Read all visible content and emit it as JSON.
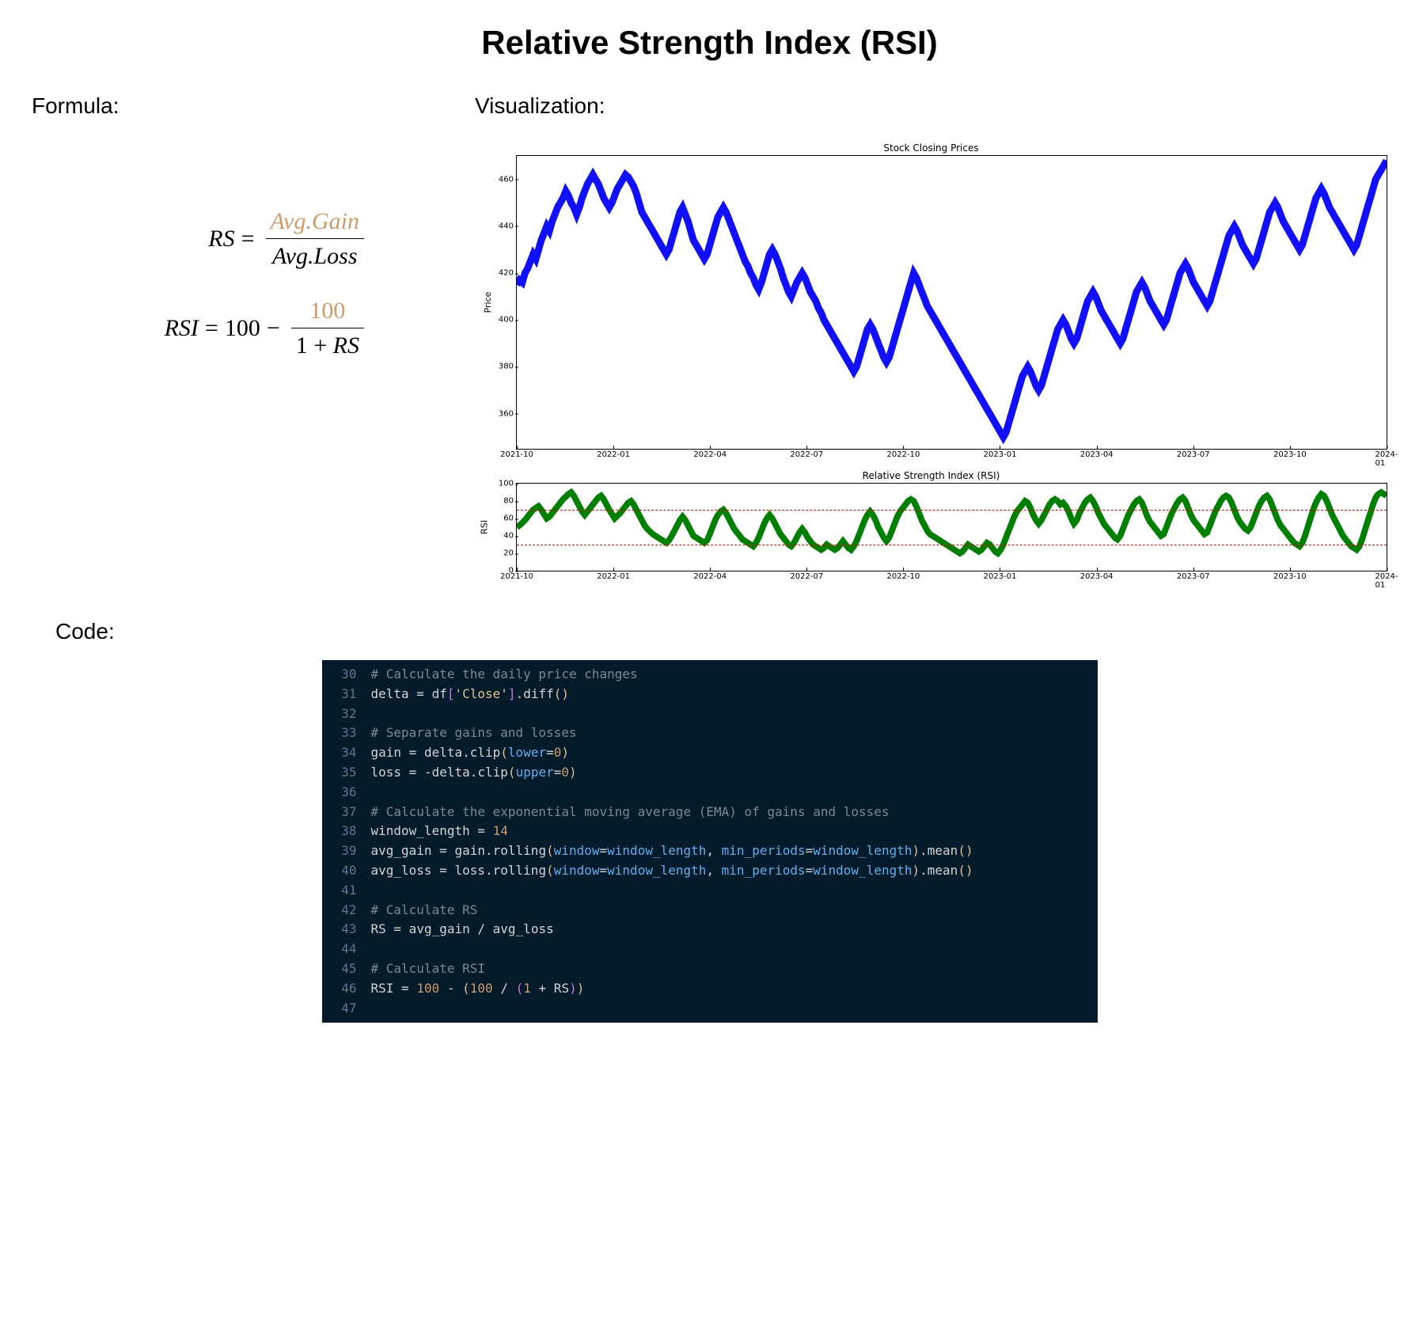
{
  "title": "Relative Strength Index (RSI)",
  "headings": {
    "formula": "Formula:",
    "visualization": "Visualization:",
    "code": "Code:"
  },
  "formula": {
    "rs_lhs": "RS",
    "rs_num": "Avg.Gain",
    "rs_den": "Avg.Loss",
    "rsi_lhs": "RSI",
    "rsi_base": "100",
    "rsi_minus": "−",
    "rsi_num": "100",
    "rsi_den_prefix": "1 + ",
    "rsi_den_var": "RS",
    "equals": "="
  },
  "price_chart": {
    "type": "line",
    "title": "Stock Closing Prices",
    "ylabel": "Price",
    "line_color": "#1010ff",
    "line_width": 1.5,
    "background_color": "#ffffff",
    "border_color": "#000000",
    "ylim": [
      345,
      470
    ],
    "yticks": [
      360,
      380,
      400,
      420,
      440,
      460
    ],
    "xlim": [
      0,
      837
    ],
    "xticks": [
      {
        "pos": 0,
        "label": "2021-10"
      },
      {
        "pos": 93,
        "label": "2022-01"
      },
      {
        "pos": 186,
        "label": "2022-04"
      },
      {
        "pos": 279,
        "label": "2022-07"
      },
      {
        "pos": 372,
        "label": "2022-10"
      },
      {
        "pos": 465,
        "label": "2023-01"
      },
      {
        "pos": 558,
        "label": "2023-04"
      },
      {
        "pos": 651,
        "label": "2023-07"
      },
      {
        "pos": 744,
        "label": "2023-10"
      },
      {
        "pos": 837,
        "label": "2024-01"
      }
    ],
    "data": [
      415,
      417,
      416,
      420,
      422,
      425,
      428,
      426,
      430,
      434,
      437,
      440,
      438,
      442,
      445,
      448,
      450,
      452,
      455,
      453,
      450,
      448,
      445,
      448,
      452,
      455,
      458,
      460,
      462,
      460,
      458,
      455,
      452,
      450,
      448,
      450,
      453,
      456,
      458,
      460,
      462,
      461,
      459,
      457,
      454,
      450,
      446,
      444,
      442,
      440,
      438,
      436,
      434,
      432,
      430,
      428,
      430,
      434,
      438,
      442,
      446,
      448,
      445,
      442,
      438,
      434,
      432,
      430,
      428,
      426,
      428,
      432,
      436,
      440,
      444,
      446,
      448,
      446,
      443,
      440,
      437,
      434,
      431,
      428,
      425,
      423,
      420,
      418,
      415,
      413,
      416,
      420,
      424,
      428,
      430,
      428,
      425,
      422,
      418,
      415,
      412,
      410,
      413,
      416,
      418,
      420,
      418,
      415,
      412,
      410,
      408,
      405,
      403,
      400,
      398,
      396,
      394,
      392,
      390,
      388,
      386,
      384,
      382,
      380,
      378,
      380,
      384,
      388,
      392,
      396,
      398,
      396,
      393,
      390,
      387,
      384,
      382,
      384,
      388,
      392,
      396,
      400,
      404,
      408,
      412,
      416,
      420,
      418,
      415,
      412,
      409,
      406,
      404,
      402,
      400,
      398,
      396,
      394,
      392,
      390,
      388,
      386,
      384,
      382,
      380,
      378,
      376,
      374,
      372,
      370,
      368,
      366,
      364,
      362,
      360,
      358,
      356,
      354,
      352,
      350,
      352,
      356,
      360,
      364,
      368,
      372,
      376,
      378,
      380,
      378,
      375,
      372,
      370,
      372,
      376,
      380,
      384,
      388,
      392,
      396,
      398,
      400,
      398,
      395,
      392,
      390,
      392,
      396,
      400,
      404,
      408,
      410,
      412,
      410,
      407,
      404,
      402,
      400,
      398,
      396,
      394,
      392,
      390,
      392,
      396,
      400,
      404,
      408,
      412,
      414,
      416,
      414,
      411,
      408,
      406,
      404,
      402,
      400,
      398,
      400,
      404,
      408,
      412,
      416,
      420,
      422,
      424,
      422,
      419,
      416,
      414,
      412,
      410,
      408,
      406,
      408,
      412,
      416,
      420,
      424,
      428,
      432,
      436,
      438,
      440,
      438,
      435,
      432,
      430,
      428,
      426,
      424,
      426,
      430,
      434,
      438,
      442,
      446,
      448,
      450,
      448,
      445,
      442,
      440,
      438,
      436,
      434,
      432,
      430,
      432,
      436,
      440,
      444,
      448,
      452,
      454,
      456,
      454,
      451,
      448,
      446,
      444,
      442,
      440,
      438,
      436,
      434,
      432,
      430,
      432,
      436,
      440,
      444,
      448,
      452,
      456,
      460,
      462,
      464,
      466,
      468
    ]
  },
  "rsi_chart": {
    "type": "line",
    "title": "Relative Strength Index (RSI)",
    "ylabel": "RSI",
    "line_color": "#008000",
    "line_width": 1.3,
    "threshold_color": "#ff0000",
    "thresholds": [
      30,
      70
    ],
    "background_color": "#ffffff",
    "border_color": "#000000",
    "ylim": [
      0,
      100
    ],
    "yticks": [
      0,
      20,
      40,
      60,
      80,
      100
    ],
    "xlim": [
      0,
      837
    ],
    "xticks": [
      {
        "pos": 0,
        "label": "2021-10"
      },
      {
        "pos": 93,
        "label": "2022-01"
      },
      {
        "pos": 186,
        "label": "2022-04"
      },
      {
        "pos": 279,
        "label": "2022-07"
      },
      {
        "pos": 372,
        "label": "2022-10"
      },
      {
        "pos": 465,
        "label": "2023-01"
      },
      {
        "pos": 558,
        "label": "2023-04"
      },
      {
        "pos": 651,
        "label": "2023-07"
      },
      {
        "pos": 744,
        "label": "2023-10"
      },
      {
        "pos": 837,
        "label": "2024-01"
      }
    ],
    "data": [
      50,
      52,
      55,
      58,
      62,
      66,
      70,
      72,
      74,
      70,
      65,
      60,
      62,
      66,
      70,
      74,
      78,
      82,
      85,
      88,
      90,
      86,
      80,
      74,
      68,
      64,
      68,
      72,
      76,
      80,
      84,
      86,
      82,
      76,
      70,
      65,
      60,
      63,
      66,
      70,
      74,
      78,
      80,
      76,
      70,
      64,
      58,
      52,
      48,
      45,
      42,
      40,
      38,
      36,
      34,
      32,
      35,
      40,
      46,
      52,
      58,
      62,
      58,
      52,
      46,
      40,
      38,
      36,
      34,
      32,
      35,
      42,
      50,
      58,
      64,
      68,
      70,
      66,
      60,
      54,
      48,
      44,
      40,
      36,
      34,
      32,
      30,
      28,
      32,
      38,
      46,
      54,
      60,
      64,
      60,
      54,
      48,
      42,
      38,
      34,
      30,
      28,
      32,
      38,
      44,
      48,
      44,
      38,
      34,
      30,
      28,
      26,
      24,
      26,
      30,
      28,
      26,
      24,
      26,
      30,
      34,
      30,
      26,
      24,
      28,
      34,
      42,
      50,
      58,
      64,
      68,
      64,
      58,
      50,
      44,
      38,
      34,
      38,
      46,
      54,
      62,
      68,
      72,
      76,
      80,
      82,
      80,
      74,
      66,
      58,
      52,
      46,
      42,
      40,
      38,
      36,
      34,
      32,
      30,
      28,
      26,
      24,
      22,
      20,
      22,
      26,
      30,
      28,
      26,
      24,
      22,
      24,
      28,
      32,
      30,
      26,
      22,
      20,
      24,
      30,
      38,
      46,
      54,
      62,
      68,
      72,
      76,
      80,
      78,
      72,
      64,
      58,
      54,
      58,
      64,
      70,
      76,
      80,
      82,
      80,
      76,
      78,
      74,
      68,
      60,
      54,
      58,
      66,
      72,
      78,
      82,
      84,
      80,
      74,
      66,
      60,
      54,
      50,
      46,
      42,
      38,
      36,
      40,
      48,
      56,
      64,
      70,
      76,
      80,
      82,
      78,
      70,
      62,
      56,
      52,
      48,
      44,
      40,
      42,
      50,
      58,
      66,
      72,
      78,
      82,
      84,
      80,
      72,
      64,
      58,
      54,
      50,
      46,
      42,
      44,
      52,
      60,
      68,
      74,
      80,
      84,
      86,
      84,
      78,
      70,
      62,
      56,
      52,
      48,
      46,
      50,
      58,
      66,
      74,
      80,
      84,
      86,
      82,
      74,
      66,
      58,
      52,
      48,
      44,
      40,
      36,
      32,
      30,
      28,
      32,
      40,
      50,
      60,
      70,
      78,
      84,
      88,
      86,
      80,
      72,
      64,
      58,
      52,
      46,
      40,
      36,
      32,
      28,
      26,
      24,
      28,
      36,
      46,
      56,
      66,
      76,
      84,
      88,
      90,
      88,
      86
    ]
  },
  "code": {
    "background": "#041b2b",
    "text_color": "#d4d4d4",
    "linenum_color": "#5a7a8a",
    "comment_color": "#7a8a94",
    "string_color": "#e2c08d",
    "number_color": "#d19a66",
    "param_color": "#61afef",
    "font_size": 16,
    "start_line": 30,
    "lines": [
      {
        "n": 30,
        "tokens": [
          {
            "t": "# Calculate the daily price changes",
            "c": "cmt"
          }
        ]
      },
      {
        "n": 31,
        "tokens": [
          {
            "t": "delta ",
            "c": "var"
          },
          {
            "t": "=",
            "c": "op"
          },
          {
            "t": " df",
            "c": "var"
          },
          {
            "t": "[",
            "c": "brack"
          },
          {
            "t": "'Close'",
            "c": "str"
          },
          {
            "t": "]",
            "c": "brack"
          },
          {
            "t": ".",
            "c": "op"
          },
          {
            "t": "diff",
            "c": "fn"
          },
          {
            "t": "()",
            "c": "paren"
          }
        ]
      },
      {
        "n": 32,
        "tokens": []
      },
      {
        "n": 33,
        "tokens": [
          {
            "t": "# Separate gains and losses",
            "c": "cmt"
          }
        ]
      },
      {
        "n": 34,
        "tokens": [
          {
            "t": "gain ",
            "c": "var"
          },
          {
            "t": "=",
            "c": "op"
          },
          {
            "t": " delta.clip",
            "c": "var"
          },
          {
            "t": "(",
            "c": "paren"
          },
          {
            "t": "lower",
            "c": "param"
          },
          {
            "t": "=",
            "c": "op"
          },
          {
            "t": "0",
            "c": "num"
          },
          {
            "t": ")",
            "c": "paren"
          }
        ]
      },
      {
        "n": 35,
        "tokens": [
          {
            "t": "loss ",
            "c": "var"
          },
          {
            "t": "=",
            "c": "op"
          },
          {
            "t": " ",
            "c": "var"
          },
          {
            "t": "-",
            "c": "op"
          },
          {
            "t": "delta.clip",
            "c": "var"
          },
          {
            "t": "(",
            "c": "paren"
          },
          {
            "t": "upper",
            "c": "param"
          },
          {
            "t": "=",
            "c": "op"
          },
          {
            "t": "0",
            "c": "num"
          },
          {
            "t": ")",
            "c": "paren"
          }
        ]
      },
      {
        "n": 36,
        "tokens": []
      },
      {
        "n": 37,
        "tokens": [
          {
            "t": "# Calculate the exponential moving average (EMA) of gains and losses",
            "c": "cmt"
          }
        ]
      },
      {
        "n": 38,
        "tokens": [
          {
            "t": "window_length ",
            "c": "var"
          },
          {
            "t": "=",
            "c": "op"
          },
          {
            "t": " ",
            "c": "var"
          },
          {
            "t": "14",
            "c": "num"
          }
        ]
      },
      {
        "n": 39,
        "tokens": [
          {
            "t": "avg_gain ",
            "c": "var"
          },
          {
            "t": "=",
            "c": "op"
          },
          {
            "t": " gain.rolling",
            "c": "var"
          },
          {
            "t": "(",
            "c": "paren"
          },
          {
            "t": "window",
            "c": "param"
          },
          {
            "t": "=",
            "c": "op"
          },
          {
            "t": "window_length",
            "c": "param"
          },
          {
            "t": ", ",
            "c": "var"
          },
          {
            "t": "min_periods",
            "c": "param"
          },
          {
            "t": "=",
            "c": "op"
          },
          {
            "t": "window_length",
            "c": "param"
          },
          {
            "t": ")",
            "c": "paren"
          },
          {
            "t": ".mean",
            "c": "var"
          },
          {
            "t": "()",
            "c": "paren"
          }
        ]
      },
      {
        "n": 40,
        "tokens": [
          {
            "t": "avg_loss ",
            "c": "var"
          },
          {
            "t": "=",
            "c": "op"
          },
          {
            "t": " loss.rolling",
            "c": "var"
          },
          {
            "t": "(",
            "c": "paren"
          },
          {
            "t": "window",
            "c": "param"
          },
          {
            "t": "=",
            "c": "op"
          },
          {
            "t": "window_length",
            "c": "param"
          },
          {
            "t": ", ",
            "c": "var"
          },
          {
            "t": "min_periods",
            "c": "param"
          },
          {
            "t": "=",
            "c": "op"
          },
          {
            "t": "window_length",
            "c": "param"
          },
          {
            "t": ")",
            "c": "paren"
          },
          {
            "t": ".mean",
            "c": "var"
          },
          {
            "t": "()",
            "c": "paren"
          }
        ]
      },
      {
        "n": 41,
        "tokens": []
      },
      {
        "n": 42,
        "tokens": [
          {
            "t": "# Calculate RS",
            "c": "cmt"
          }
        ]
      },
      {
        "n": 43,
        "tokens": [
          {
            "t": "RS ",
            "c": "var"
          },
          {
            "t": "=",
            "c": "op"
          },
          {
            "t": " avg_gain ",
            "c": "var"
          },
          {
            "t": "/",
            "c": "op"
          },
          {
            "t": " avg_loss",
            "c": "var"
          }
        ]
      },
      {
        "n": 44,
        "tokens": []
      },
      {
        "n": 45,
        "tokens": [
          {
            "t": "# Calculate RSI",
            "c": "cmt"
          }
        ]
      },
      {
        "n": 46,
        "tokens": [
          {
            "t": "RSI ",
            "c": "var"
          },
          {
            "t": "=",
            "c": "op"
          },
          {
            "t": " ",
            "c": "var"
          },
          {
            "t": "100",
            "c": "num"
          },
          {
            "t": " ",
            "c": "var"
          },
          {
            "t": "-",
            "c": "op"
          },
          {
            "t": " ",
            "c": "var"
          },
          {
            "t": "(",
            "c": "paren"
          },
          {
            "t": "100",
            "c": "num"
          },
          {
            "t": " ",
            "c": "var"
          },
          {
            "t": "/",
            "c": "op"
          },
          {
            "t": " ",
            "c": "var"
          },
          {
            "t": "(",
            "c": "brack"
          },
          {
            "t": "1",
            "c": "num"
          },
          {
            "t": " ",
            "c": "var"
          },
          {
            "t": "+",
            "c": "op"
          },
          {
            "t": " RS",
            "c": "var"
          },
          {
            "t": ")",
            "c": "brack"
          },
          {
            "t": ")",
            "c": "paren"
          }
        ]
      },
      {
        "n": 47,
        "tokens": []
      }
    ]
  }
}
